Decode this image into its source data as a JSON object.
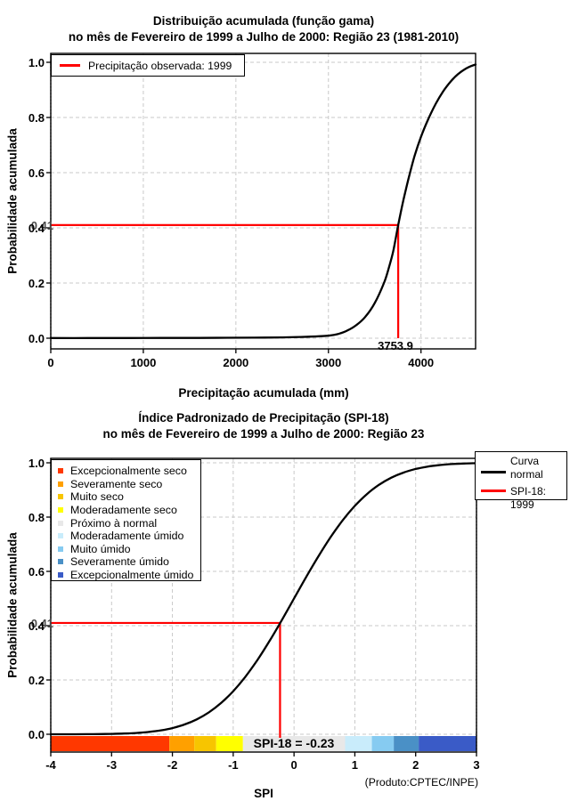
{
  "chart_data": [
    {
      "type": "line",
      "title": "Distribuição acumulada (função gama)",
      "subtitle": "no mês de Fevereiro de 1999 a Julho de 2000: Região 23 (1981-2010)",
      "xlabel": "Precipitação acumulada (mm)",
      "ylabel": "Probabilidade acumulada",
      "xlim": [
        0,
        4590
      ],
      "ylim": [
        0,
        1
      ],
      "xticks": [
        0,
        1000,
        2000,
        3000,
        4000
      ],
      "yticks": [
        0,
        0.2,
        0.4,
        0.6,
        0.8,
        1
      ],
      "grid": true,
      "legend": [
        {
          "label": "Precipitação observada: 1999",
          "color": "#FF0000",
          "position": "topleft"
        }
      ],
      "annotation": {
        "probability": 0.41,
        "probability_label": "0.41",
        "x": 3753.9,
        "x_label": "3753.9",
        "color": "#FF0000"
      },
      "series": [
        {
          "name": "Distribuição acumulada (função gama)",
          "color": "#000000",
          "points": [
            [
              0,
              0.0005
            ],
            [
              400,
              0.0005
            ],
            [
              800,
              0.0007
            ],
            [
              1200,
              0.0009
            ],
            [
              1600,
              0.0011
            ],
            [
              1900,
              0.0015
            ],
            [
              2200,
              0.002
            ],
            [
              2500,
              0.003
            ],
            [
              2700,
              0.0045
            ],
            [
              2900,
              0.007
            ],
            [
              3000,
              0.009
            ],
            [
              3100,
              0.015
            ],
            [
              3200,
              0.027
            ],
            [
              3300,
              0.047
            ],
            [
              3400,
              0.078
            ],
            [
              3500,
              0.127
            ],
            [
              3600,
              0.2
            ],
            [
              3650,
              0.252
            ],
            [
              3700,
              0.315
            ],
            [
              3753.9,
              0.41
            ],
            [
              3810,
              0.5
            ],
            [
              3870,
              0.585
            ],
            [
              3930,
              0.66
            ],
            [
              4000,
              0.73
            ],
            [
              4080,
              0.795
            ],
            [
              4160,
              0.85
            ],
            [
              4240,
              0.895
            ],
            [
              4320,
              0.93
            ],
            [
              4400,
              0.957
            ],
            [
              4480,
              0.976
            ],
            [
              4540,
              0.986
            ],
            [
              4590,
              0.992
            ]
          ]
        }
      ]
    },
    {
      "type": "line",
      "title": "Índice Padronizado de Precipitação (SPI-18)",
      "subtitle": "no mês de Fevereiro de 1999 a Julho de 2000: Região 23",
      "xlabel": "SPI",
      "ylabel": "Probabilidade acumulada",
      "footer": "(Produto:CPTEC/INPE)",
      "xlim": [
        -4,
        3
      ],
      "ylim": [
        0,
        1
      ],
      "xticks": [
        -4,
        -3,
        -2,
        -1,
        0,
        1,
        2,
        3
      ],
      "yticks": [
        0,
        0.2,
        0.4,
        0.6,
        0.8,
        1
      ],
      "grid": true,
      "categories": [
        {
          "label": "Excepcionalmente seco",
          "color": "#FF3800"
        },
        {
          "label": "Severamente seco",
          "color": "#FFA000"
        },
        {
          "label": "Muito seco",
          "color": "#F7C500"
        },
        {
          "label": "Moderadamente seco",
          "color": "#FFFF00"
        },
        {
          "label": "Próximo à normal",
          "color": "#E8E8E8"
        },
        {
          "label": "Moderadamente úmido",
          "color": "#C9ECFB"
        },
        {
          "label": "Muito úmido",
          "color": "#86CBF1"
        },
        {
          "label": "Severamente úmido",
          "color": "#4A90C6"
        },
        {
          "label": "Excepcionalmente úmido",
          "color": "#3A5BC7"
        }
      ],
      "colorbar": {
        "breaks": [
          -4,
          -2.05,
          -1.64,
          -1.28,
          -0.84,
          0.84,
          1.28,
          1.64,
          2.05,
          3
        ]
      },
      "legend_right": [
        {
          "label": "Curva\nnormal",
          "color": "#000000"
        },
        {
          "label": "SPI-18: 1999",
          "color": "#FF0000"
        }
      ],
      "annotation": {
        "probability": 0.41,
        "probability_label": "0.41",
        "x": -0.23,
        "x_label": "SPI-18 = -0.23",
        "color": "#FF0000"
      },
      "series": [
        {
          "name": "Curva normal",
          "color": "#000000",
          "points": [
            [
              -4,
              3e-05
            ],
            [
              -3.8,
              7e-05
            ],
            [
              -3.6,
              0.00016
            ],
            [
              -3.4,
              0.00034
            ],
            [
              -3.2,
              0.00069
            ],
            [
              -3,
              0.00135
            ],
            [
              -2.8,
              0.00256
            ],
            [
              -2.6,
              0.00466
            ],
            [
              -2.4,
              0.0082
            ],
            [
              -2.2,
              0.0139
            ],
            [
              -2,
              0.02275
            ],
            [
              -1.8,
              0.03593
            ],
            [
              -1.6,
              0.0548
            ],
            [
              -1.4,
              0.08076
            ],
            [
              -1.2,
              0.11507
            ],
            [
              -1,
              0.15866
            ],
            [
              -0.8,
              0.21186
            ],
            [
              -0.6,
              0.27425
            ],
            [
              -0.4,
              0.34458
            ],
            [
              -0.2,
              0.42074
            ],
            [
              0,
              0.5
            ],
            [
              0.2,
              0.57926
            ],
            [
              0.4,
              0.65542
            ],
            [
              0.6,
              0.72575
            ],
            [
              0.8,
              0.78814
            ],
            [
              1,
              0.84134
            ],
            [
              1.2,
              0.88493
            ],
            [
              1.4,
              0.91924
            ],
            [
              1.6,
              0.9452
            ],
            [
              1.8,
              0.96407
            ],
            [
              2,
              0.97725
            ],
            [
              2.2,
              0.9861
            ],
            [
              2.4,
              0.9918
            ],
            [
              2.6,
              0.99534
            ],
            [
              2.8,
              0.99744
            ],
            [
              3,
              0.99865
            ]
          ]
        }
      ]
    }
  ]
}
